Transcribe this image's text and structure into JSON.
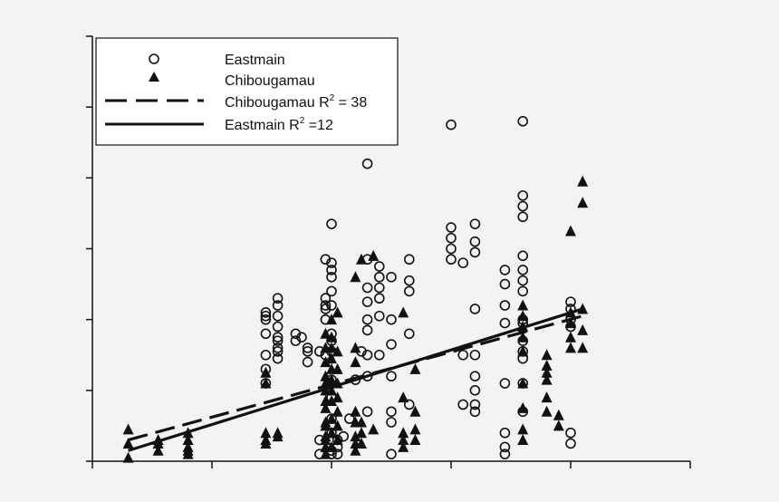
{
  "colors": {
    "background": "#f3f3f3",
    "ink": "#111111",
    "legend_bg": "#ffffff"
  },
  "chart_data": {
    "type": "scatter",
    "title": "",
    "xlabel": "",
    "ylabel": "",
    "xlim": [
      0,
      10
    ],
    "ylim": [
      0,
      6
    ],
    "xticks": [
      0,
      2,
      4,
      6,
      8,
      10
    ],
    "yticks": [
      0,
      1,
      2,
      3,
      4,
      5,
      6
    ],
    "tick_labels_visible": false,
    "grid": false,
    "legend": {
      "position": "top-left",
      "entries": [
        {
          "label": "Eastmain",
          "marker": "open-circle"
        },
        {
          "label": "Chibougamau",
          "marker": "filled-triangle"
        },
        {
          "label": "Chibougamau R",
          "sup": "2",
          "suffix": " = 38",
          "style": "dashed-line"
        },
        {
          "label": "Eastmain R",
          "sup": "2",
          "suffix": " =12",
          "style": "solid-line"
        }
      ]
    },
    "series": [
      {
        "name": "Eastmain",
        "marker": "open-circle",
        "points": [
          [
            2.9,
            1.1
          ],
          [
            2.9,
            1.3
          ],
          [
            2.9,
            1.5
          ],
          [
            2.9,
            1.8
          ],
          [
            2.9,
            2.0
          ],
          [
            2.9,
            2.05
          ],
          [
            2.9,
            2.1
          ],
          [
            3.1,
            1.45
          ],
          [
            3.1,
            1.55
          ],
          [
            3.1,
            1.6
          ],
          [
            3.1,
            1.7
          ],
          [
            3.1,
            1.75
          ],
          [
            3.1,
            1.9
          ],
          [
            3.1,
            2.05
          ],
          [
            3.1,
            2.2
          ],
          [
            3.1,
            2.3
          ],
          [
            3.4,
            1.7
          ],
          [
            3.4,
            1.8
          ],
          [
            3.5,
            1.75
          ],
          [
            3.6,
            1.6
          ],
          [
            3.6,
            1.4
          ],
          [
            3.6,
            1.55
          ],
          [
            3.8,
            0.1
          ],
          [
            3.8,
            0.3
          ],
          [
            3.8,
            1.55
          ],
          [
            3.9,
            1.5
          ],
          [
            3.9,
            2.2
          ],
          [
            3.9,
            2.3
          ],
          [
            3.9,
            2.85
          ],
          [
            3.9,
            2.0
          ],
          [
            3.9,
            2.15
          ],
          [
            4.0,
            0.1
          ],
          [
            4.0,
            0.15
          ],
          [
            4.0,
            0.3
          ],
          [
            4.0,
            0.4
          ],
          [
            4.0,
            0.5
          ],
          [
            4.0,
            0.6
          ],
          [
            4.0,
            0.9
          ],
          [
            4.0,
            1.15
          ],
          [
            4.0,
            1.55
          ],
          [
            4.0,
            1.7
          ],
          [
            4.0,
            1.8
          ],
          [
            4.0,
            2.2
          ],
          [
            4.0,
            2.4
          ],
          [
            4.0,
            2.6
          ],
          [
            4.0,
            2.7
          ],
          [
            4.0,
            2.8
          ],
          [
            4.0,
            3.35
          ],
          [
            4.1,
            0.1
          ],
          [
            4.1,
            0.2
          ],
          [
            4.1,
            0.3
          ],
          [
            4.2,
            0.35
          ],
          [
            4.3,
            0.6
          ],
          [
            4.4,
            1.15
          ],
          [
            4.5,
            1.55
          ],
          [
            4.6,
            0.7
          ],
          [
            4.6,
            1.2
          ],
          [
            4.6,
            1.5
          ],
          [
            4.6,
            1.85
          ],
          [
            4.6,
            2.0
          ],
          [
            4.6,
            2.25
          ],
          [
            4.6,
            2.45
          ],
          [
            4.6,
            2.85
          ],
          [
            4.6,
            4.2
          ],
          [
            4.8,
            1.5
          ],
          [
            4.8,
            2.05
          ],
          [
            4.8,
            2.3
          ],
          [
            4.8,
            2.45
          ],
          [
            4.8,
            2.6
          ],
          [
            4.8,
            2.75
          ],
          [
            5.0,
            0.1
          ],
          [
            5.0,
            0.55
          ],
          [
            5.0,
            0.7
          ],
          [
            5.0,
            1.2
          ],
          [
            5.0,
            1.65
          ],
          [
            5.0,
            2.0
          ],
          [
            5.0,
            2.6
          ],
          [
            5.3,
            0.8
          ],
          [
            5.3,
            1.8
          ],
          [
            5.3,
            2.4
          ],
          [
            5.3,
            2.55
          ],
          [
            5.3,
            2.85
          ],
          [
            6.0,
            2.85
          ],
          [
            6.0,
            3.0
          ],
          [
            6.0,
            3.15
          ],
          [
            6.0,
            3.3
          ],
          [
            6.0,
            4.75
          ],
          [
            6.2,
            0.8
          ],
          [
            6.2,
            1.5
          ],
          [
            6.2,
            2.8
          ],
          [
            6.4,
            0.7
          ],
          [
            6.4,
            0.8
          ],
          [
            6.4,
            1.0
          ],
          [
            6.4,
            1.2
          ],
          [
            6.4,
            1.5
          ],
          [
            6.4,
            2.15
          ],
          [
            6.4,
            2.95
          ],
          [
            6.4,
            3.1
          ],
          [
            6.4,
            3.35
          ],
          [
            6.9,
            0.1
          ],
          [
            6.9,
            0.2
          ],
          [
            6.9,
            0.4
          ],
          [
            6.9,
            1.1
          ],
          [
            6.9,
            1.95
          ],
          [
            6.9,
            2.2
          ],
          [
            6.9,
            2.5
          ],
          [
            6.9,
            2.7
          ],
          [
            7.2,
            0.7
          ],
          [
            7.2,
            1.1
          ],
          [
            7.2,
            1.45
          ],
          [
            7.2,
            1.55
          ],
          [
            7.2,
            1.7
          ],
          [
            7.2,
            1.95
          ],
          [
            7.2,
            2.0
          ],
          [
            7.2,
            2.4
          ],
          [
            7.2,
            2.55
          ],
          [
            7.2,
            2.7
          ],
          [
            7.2,
            2.9
          ],
          [
            7.2,
            3.45
          ],
          [
            7.2,
            3.6
          ],
          [
            7.2,
            3.75
          ],
          [
            7.2,
            4.8
          ],
          [
            8.0,
            0.25
          ],
          [
            8.0,
            0.4
          ],
          [
            8.0,
            1.9
          ],
          [
            8.0,
            2.0
          ],
          [
            8.0,
            2.15
          ],
          [
            8.0,
            2.25
          ]
        ]
      },
      {
        "name": "Chibougamau",
        "marker": "filled-triangle",
        "points": [
          [
            0.6,
            0.05
          ],
          [
            0.6,
            0.25
          ],
          [
            0.6,
            0.45
          ],
          [
            1.1,
            0.15
          ],
          [
            1.1,
            0.25
          ],
          [
            1.1,
            0.3
          ],
          [
            1.6,
            0.1
          ],
          [
            1.6,
            0.15
          ],
          [
            1.6,
            0.2
          ],
          [
            1.6,
            0.3
          ],
          [
            1.6,
            0.4
          ],
          [
            2.9,
            0.25
          ],
          [
            2.9,
            0.3
          ],
          [
            2.9,
            0.4
          ],
          [
            2.9,
            1.1
          ],
          [
            2.9,
            1.25
          ],
          [
            3.1,
            0.35
          ],
          [
            3.1,
            0.4
          ],
          [
            3.9,
            0.1
          ],
          [
            3.9,
            0.2
          ],
          [
            3.9,
            0.3
          ],
          [
            3.9,
            0.35
          ],
          [
            3.9,
            0.5
          ],
          [
            3.9,
            0.55
          ],
          [
            3.9,
            0.75
          ],
          [
            3.9,
            0.85
          ],
          [
            3.9,
            1.0
          ],
          [
            3.9,
            1.1
          ],
          [
            3.9,
            1.2
          ],
          [
            3.9,
            1.4
          ],
          [
            3.9,
            1.6
          ],
          [
            3.9,
            1.8
          ],
          [
            4.0,
            0.2
          ],
          [
            4.0,
            0.4
          ],
          [
            4.0,
            0.6
          ],
          [
            4.0,
            0.85
          ],
          [
            4.0,
            1.0
          ],
          [
            4.0,
            1.15
          ],
          [
            4.0,
            1.3
          ],
          [
            4.0,
            1.45
          ],
          [
            4.0,
            1.6
          ],
          [
            4.0,
            1.75
          ],
          [
            4.0,
            2.0
          ],
          [
            4.1,
            0.3
          ],
          [
            4.1,
            0.5
          ],
          [
            4.1,
            0.7
          ],
          [
            4.1,
            0.9
          ],
          [
            4.1,
            1.1
          ],
          [
            4.1,
            1.3
          ],
          [
            4.1,
            1.55
          ],
          [
            4.1,
            2.1
          ],
          [
            4.4,
            0.15
          ],
          [
            4.4,
            0.25
          ],
          [
            4.4,
            0.35
          ],
          [
            4.4,
            0.55
          ],
          [
            4.4,
            0.7
          ],
          [
            4.4,
            1.4
          ],
          [
            4.4,
            1.6
          ],
          [
            4.4,
            2.6
          ],
          [
            4.5,
            0.25
          ],
          [
            4.5,
            0.4
          ],
          [
            4.5,
            0.55
          ],
          [
            4.5,
            2.85
          ],
          [
            4.7,
            0.45
          ],
          [
            4.7,
            2.9
          ],
          [
            5.2,
            0.2
          ],
          [
            5.2,
            0.3
          ],
          [
            5.2,
            0.4
          ],
          [
            5.2,
            0.9
          ],
          [
            5.2,
            2.1
          ],
          [
            5.4,
            0.3
          ],
          [
            5.4,
            0.45
          ],
          [
            5.4,
            0.7
          ],
          [
            5.4,
            1.3
          ],
          [
            7.2,
            0.3
          ],
          [
            7.2,
            0.45
          ],
          [
            7.2,
            0.75
          ],
          [
            7.2,
            1.1
          ],
          [
            7.2,
            1.55
          ],
          [
            7.2,
            1.75
          ],
          [
            7.2,
            1.9
          ],
          [
            7.2,
            2.05
          ],
          [
            7.2,
            2.2
          ],
          [
            7.6,
            0.7
          ],
          [
            7.6,
            0.9
          ],
          [
            7.6,
            1.15
          ],
          [
            7.6,
            1.25
          ],
          [
            7.6,
            1.35
          ],
          [
            7.6,
            1.5
          ],
          [
            7.8,
            0.5
          ],
          [
            7.8,
            0.65
          ],
          [
            8.0,
            1.6
          ],
          [
            8.0,
            1.75
          ],
          [
            8.0,
            1.95
          ],
          [
            8.0,
            2.1
          ],
          [
            8.0,
            3.25
          ],
          [
            8.2,
            1.6
          ],
          [
            8.2,
            1.85
          ],
          [
            8.2,
            2.15
          ],
          [
            8.2,
            3.65
          ],
          [
            8.2,
            3.95
          ]
        ]
      }
    ],
    "fits": [
      {
        "name": "Chibougamau",
        "style": "dashed",
        "x": [
          0.6,
          8.2
        ],
        "y": [
          0.3,
          2.05
        ]
      },
      {
        "name": "Eastmain",
        "style": "solid",
        "x": [
          0.6,
          8.2
        ],
        "y": [
          0.15,
          2.15
        ]
      }
    ]
  }
}
